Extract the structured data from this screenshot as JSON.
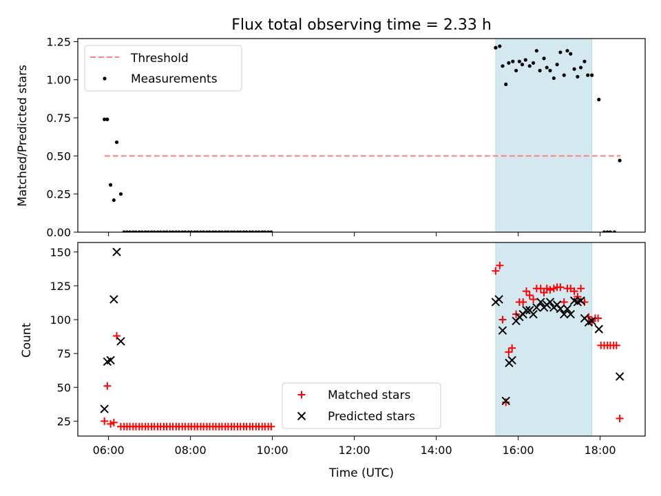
{
  "chart_data": [
    {
      "type": "scatter",
      "title": "Flux total observing time = 2.33 h",
      "xlabel": "",
      "ylabel": "Matched/Predicted stars",
      "x_unit": "hours (UTC)",
      "xlim": [
        5.25,
        19.1
      ],
      "ylim": [
        0,
        1.27
      ],
      "yticks": [
        0,
        0.25,
        0.5,
        0.75,
        1.0,
        1.25
      ],
      "ytick_labels": [
        "0.00",
        "0.25",
        "0.50",
        "0.75",
        "1.00",
        "1.25"
      ],
      "xticks": [
        6,
        8,
        10,
        12,
        14,
        16,
        18
      ],
      "legend_position": "top-left",
      "shaded_region": {
        "x_start": 15.45,
        "x_end": 17.8,
        "color": "#d3e9ef"
      },
      "series": [
        {
          "name": "Threshold",
          "style": "dashed-line",
          "color": "#ff7f7f",
          "x": [
            5.9,
            18.5
          ],
          "y": [
            0.5,
            0.5
          ]
        },
        {
          "name": "Measurements",
          "style": "dot",
          "color": "#000000",
          "points": [
            [
              5.9,
              0.74
            ],
            [
              5.97,
              0.74
            ],
            [
              6.05,
              0.31
            ],
            [
              6.13,
              0.21
            ],
            [
              6.2,
              0.59
            ],
            [
              6.3,
              0.25
            ],
            [
              6.38,
              0.0
            ],
            [
              6.45,
              0.0
            ],
            [
              6.52,
              0.0
            ],
            [
              6.6,
              0.0
            ],
            [
              6.67,
              0.0
            ],
            [
              6.75,
              0.0
            ],
            [
              6.82,
              0.0
            ],
            [
              6.9,
              0.0
            ],
            [
              6.97,
              0.0
            ],
            [
              7.05,
              0.0
            ],
            [
              7.12,
              0.0
            ],
            [
              7.2,
              0.0
            ],
            [
              7.27,
              0.0
            ],
            [
              7.35,
              0.0
            ],
            [
              7.42,
              0.0
            ],
            [
              7.5,
              0.0
            ],
            [
              7.57,
              0.0
            ],
            [
              7.65,
              0.0
            ],
            [
              7.72,
              0.0
            ],
            [
              7.8,
              0.0
            ],
            [
              7.87,
              0.0
            ],
            [
              7.95,
              0.0
            ],
            [
              8.02,
              0.0
            ],
            [
              8.1,
              0.0
            ],
            [
              8.17,
              0.0
            ],
            [
              8.25,
              0.0
            ],
            [
              8.32,
              0.0
            ],
            [
              8.4,
              0.0
            ],
            [
              8.47,
              0.0
            ],
            [
              8.55,
              0.0
            ],
            [
              8.62,
              0.0
            ],
            [
              8.7,
              0.0
            ],
            [
              8.77,
              0.0
            ],
            [
              8.85,
              0.0
            ],
            [
              8.92,
              0.0
            ],
            [
              9.0,
              0.0
            ],
            [
              9.07,
              0.0
            ],
            [
              9.15,
              0.0
            ],
            [
              9.22,
              0.0
            ],
            [
              9.3,
              0.0
            ],
            [
              9.37,
              0.0
            ],
            [
              9.45,
              0.0
            ],
            [
              9.52,
              0.0
            ],
            [
              9.6,
              0.0
            ],
            [
              9.67,
              0.0
            ],
            [
              9.75,
              0.0
            ],
            [
              9.82,
              0.0
            ],
            [
              9.9,
              0.0
            ],
            [
              9.97,
              0.0
            ],
            [
              15.45,
              1.21
            ],
            [
              15.55,
              1.22
            ],
            [
              15.62,
              1.09
            ],
            [
              15.7,
              0.97
            ],
            [
              15.77,
              1.11
            ],
            [
              15.87,
              1.12
            ],
            [
              15.95,
              1.06
            ],
            [
              16.03,
              1.12
            ],
            [
              16.1,
              1.1
            ],
            [
              16.18,
              1.13
            ],
            [
              16.28,
              1.09
            ],
            [
              16.37,
              1.11
            ],
            [
              16.45,
              1.19
            ],
            [
              16.53,
              1.06
            ],
            [
              16.63,
              1.14
            ],
            [
              16.7,
              1.08
            ],
            [
              16.78,
              1.06
            ],
            [
              16.87,
              1.01
            ],
            [
              16.95,
              1.1
            ],
            [
              17.03,
              1.18
            ],
            [
              17.12,
              1.03
            ],
            [
              17.2,
              1.19
            ],
            [
              17.28,
              1.17
            ],
            [
              17.37,
              1.07
            ],
            [
              17.45,
              1.02
            ],
            [
              17.53,
              1.08
            ],
            [
              17.62,
              1.12
            ],
            [
              17.7,
              1.03
            ],
            [
              17.8,
              1.03
            ],
            [
              17.97,
              0.87
            ],
            [
              18.1,
              0.0
            ],
            [
              18.18,
              0.0
            ],
            [
              18.25,
              0.0
            ],
            [
              18.35,
              0.0
            ],
            [
              18.48,
              0.47
            ]
          ]
        }
      ]
    },
    {
      "type": "scatter",
      "title": "",
      "xlabel": "Time (UTC)",
      "ylabel": "Count",
      "x_unit": "hours (UTC)",
      "xlim": [
        5.25,
        19.1
      ],
      "ylim": [
        14,
        157
      ],
      "yticks": [
        25,
        50,
        75,
        100,
        125,
        150
      ],
      "ytick_labels": [
        "25",
        "50",
        "75",
        "100",
        "125",
        "150"
      ],
      "xticks": [
        6,
        8,
        10,
        12,
        14,
        16,
        18
      ],
      "xtick_labels": [
        "06:00",
        "08:00",
        "10:00",
        "12:00",
        "14:00",
        "16:00",
        "18:00"
      ],
      "legend_position": "lower-center",
      "shaded_region": {
        "x_start": 15.45,
        "x_end": 17.8,
        "color": "#d3e9ef"
      },
      "series": [
        {
          "name": "Matched stars",
          "marker": "plus",
          "color": "#ff0000",
          "points": [
            [
              5.9,
              25
            ],
            [
              5.97,
              51
            ],
            [
              6.05,
              23
            ],
            [
              6.13,
              24
            ],
            [
              6.2,
              88
            ],
            [
              6.3,
              21
            ],
            [
              6.38,
              21
            ],
            [
              6.45,
              21
            ],
            [
              6.52,
              21
            ],
            [
              6.6,
              21
            ],
            [
              6.67,
              21
            ],
            [
              6.75,
              21
            ],
            [
              6.82,
              21
            ],
            [
              6.9,
              21
            ],
            [
              6.97,
              21
            ],
            [
              7.05,
              21
            ],
            [
              7.12,
              21
            ],
            [
              7.2,
              21
            ],
            [
              7.27,
              21
            ],
            [
              7.35,
              21
            ],
            [
              7.42,
              21
            ],
            [
              7.5,
              21
            ],
            [
              7.57,
              21
            ],
            [
              7.65,
              21
            ],
            [
              7.72,
              21
            ],
            [
              7.8,
              21
            ],
            [
              7.87,
              21
            ],
            [
              7.95,
              21
            ],
            [
              8.02,
              21
            ],
            [
              8.1,
              21
            ],
            [
              8.17,
              21
            ],
            [
              8.25,
              21
            ],
            [
              8.32,
              21
            ],
            [
              8.4,
              21
            ],
            [
              8.47,
              21
            ],
            [
              8.55,
              21
            ],
            [
              8.62,
              21
            ],
            [
              8.7,
              21
            ],
            [
              8.77,
              21
            ],
            [
              8.85,
              21
            ],
            [
              8.92,
              21
            ],
            [
              9.0,
              21
            ],
            [
              9.07,
              21
            ],
            [
              9.15,
              21
            ],
            [
              9.22,
              21
            ],
            [
              9.3,
              21
            ],
            [
              9.37,
              21
            ],
            [
              9.45,
              21
            ],
            [
              9.52,
              21
            ],
            [
              9.6,
              21
            ],
            [
              9.67,
              21
            ],
            [
              9.75,
              21
            ],
            [
              9.82,
              21
            ],
            [
              9.9,
              21
            ],
            [
              9.97,
              21
            ],
            [
              15.45,
              136
            ],
            [
              15.55,
              140
            ],
            [
              15.62,
              100
            ],
            [
              15.7,
              39
            ],
            [
              15.77,
              76
            ],
            [
              15.85,
              79
            ],
            [
              15.95,
              104
            ],
            [
              16.03,
              113
            ],
            [
              16.12,
              113
            ],
            [
              16.2,
              121
            ],
            [
              16.28,
              118
            ],
            [
              16.37,
              115
            ],
            [
              16.45,
              123
            ],
            [
              16.55,
              123
            ],
            [
              16.63,
              120
            ],
            [
              16.7,
              123
            ],
            [
              16.78,
              122
            ],
            [
              16.87,
              123
            ],
            [
              16.95,
              124
            ],
            [
              17.03,
              124
            ],
            [
              17.12,
              113
            ],
            [
              17.2,
              123
            ],
            [
              17.28,
              123
            ],
            [
              17.37,
              121
            ],
            [
              17.45,
              117
            ],
            [
              17.53,
              123
            ],
            [
              17.62,
              113
            ],
            [
              17.72,
              102
            ],
            [
              17.8,
              99
            ],
            [
              17.88,
              101
            ],
            [
              17.95,
              101
            ],
            [
              18.02,
              81
            ],
            [
              18.1,
              81
            ],
            [
              18.18,
              81
            ],
            [
              18.25,
              81
            ],
            [
              18.33,
              81
            ],
            [
              18.4,
              81
            ],
            [
              18.48,
              27
            ]
          ]
        },
        {
          "name": "Predicted stars",
          "marker": "x",
          "color": "#000000",
          "points": [
            [
              5.9,
              34
            ],
            [
              5.97,
              69
            ],
            [
              6.05,
              70
            ],
            [
              6.13,
              115
            ],
            [
              6.2,
              150
            ],
            [
              6.3,
              84
            ],
            [
              15.45,
              113
            ],
            [
              15.53,
              115
            ],
            [
              15.62,
              92
            ],
            [
              15.7,
              40
            ],
            [
              15.78,
              68
            ],
            [
              15.85,
              70
            ],
            [
              15.95,
              99
            ],
            [
              16.03,
              102
            ],
            [
              16.12,
              104
            ],
            [
              16.2,
              107
            ],
            [
              16.28,
              107
            ],
            [
              16.37,
              104
            ],
            [
              16.45,
              109
            ],
            [
              16.55,
              113
            ],
            [
              16.63,
              109
            ],
            [
              16.7,
              111
            ],
            [
              16.78,
              113
            ],
            [
              16.87,
              109
            ],
            [
              16.95,
              111
            ],
            [
              17.03,
              108
            ],
            [
              17.12,
              104
            ],
            [
              17.2,
              108
            ],
            [
              17.28,
              104
            ],
            [
              17.37,
              114
            ],
            [
              17.45,
              113
            ],
            [
              17.53,
              114
            ],
            [
              17.62,
              101
            ],
            [
              17.72,
              98
            ],
            [
              17.8,
              99
            ],
            [
              17.97,
              93
            ],
            [
              18.48,
              58
            ]
          ]
        }
      ]
    }
  ]
}
